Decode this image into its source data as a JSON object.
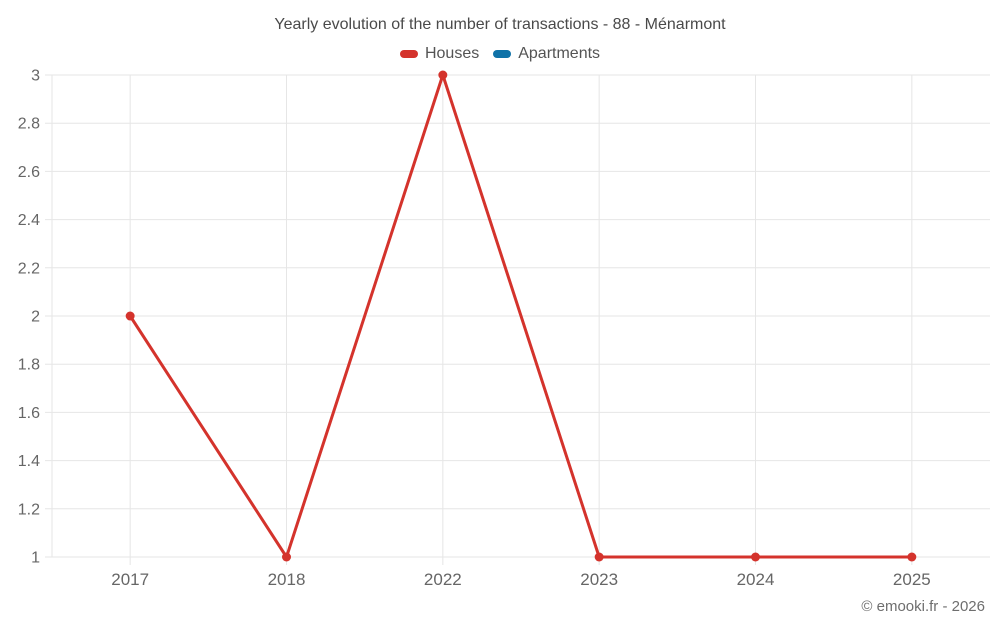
{
  "chart_data": {
    "type": "line",
    "title": "Yearly evolution of the number of transactions - 88 - Ménarmont",
    "categories": [
      "2017",
      "2018",
      "2022",
      "2023",
      "2024",
      "2025"
    ],
    "series": [
      {
        "name": "Houses",
        "color": "#d4332c",
        "values": [
          2,
          1,
          3,
          1,
          1,
          1
        ]
      },
      {
        "name": "Apartments",
        "color": "#0f72a8",
        "values": []
      }
    ],
    "xlabel": "",
    "ylabel": "",
    "ylim": [
      1,
      3
    ],
    "ytick_labels": [
      "1",
      "1.2",
      "1.4",
      "1.6",
      "1.8",
      "2",
      "2.2",
      "2.4",
      "2.6",
      "2.8",
      "3"
    ],
    "grid": true,
    "legend_position": "top",
    "grid_color": "#e6e6e6",
    "axis_label_color": "#666666"
  },
  "footer": {
    "credit": "© emooki.fr - 2026"
  }
}
